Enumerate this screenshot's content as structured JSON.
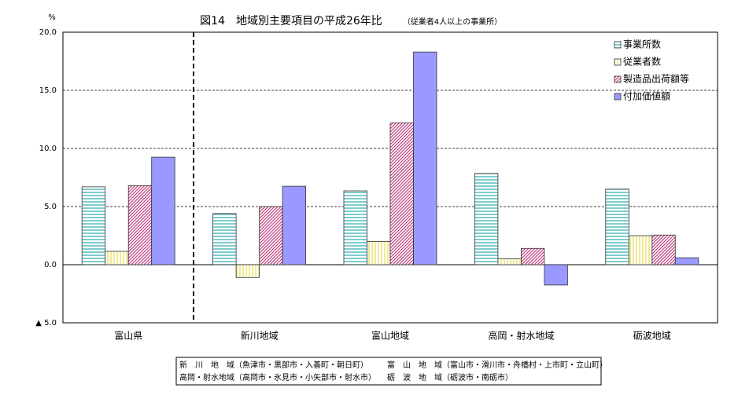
{
  "chart_data": {
    "type": "bar",
    "title": "図14　地域別主要項目の平成26年比",
    "subtitle": "（従業者4人以上の事業所）",
    "y_unit": "%",
    "categories": [
      "富山県",
      "新川地域",
      "富山地域",
      "高岡・射水地域",
      "砺波地域"
    ],
    "series": [
      {
        "name": "事業所数",
        "color": "#3cb0b8",
        "pattern": "horizontal",
        "values": [
          6.7,
          4.4,
          6.35,
          7.85,
          6.5
        ]
      },
      {
        "name": "従業者数",
        "color": "#e8e060",
        "pattern": "vertical",
        "values": [
          1.15,
          -1.1,
          2.0,
          0.5,
          2.5
        ]
      },
      {
        "name": "製造品出荷額等",
        "color": "#c04080",
        "pattern": "diagonal",
        "values": [
          6.8,
          5.0,
          12.2,
          1.4,
          2.55
        ]
      },
      {
        "name": "付加価値額",
        "color": "#9999ff",
        "pattern": "solid",
        "values": [
          9.25,
          6.75,
          18.3,
          -1.75,
          0.6
        ]
      }
    ],
    "ylim": [
      -5,
      20
    ],
    "yticks": [
      {
        "value": -5,
        "label": "▲ 5.0"
      },
      {
        "value": 0,
        "label": "0.0"
      },
      {
        "value": 5,
        "label": "5.0"
      },
      {
        "value": 10,
        "label": "10.0"
      },
      {
        "value": 15,
        "label": "15.0"
      },
      {
        "value": 20,
        "label": "20.0"
      }
    ],
    "grid": true,
    "legend": "top-right",
    "notes": [
      "新　川　地　域（魚津市・黒部市・入善町・朝日町）",
      "富　山　地　域（富山市・滑川市・舟橋村・上市町・立山町）",
      "高岡・射水地域（高岡市・氷見市・小矢部市・射水市）",
      "砺　波　地　域（砺波市・南砺市）"
    ]
  }
}
